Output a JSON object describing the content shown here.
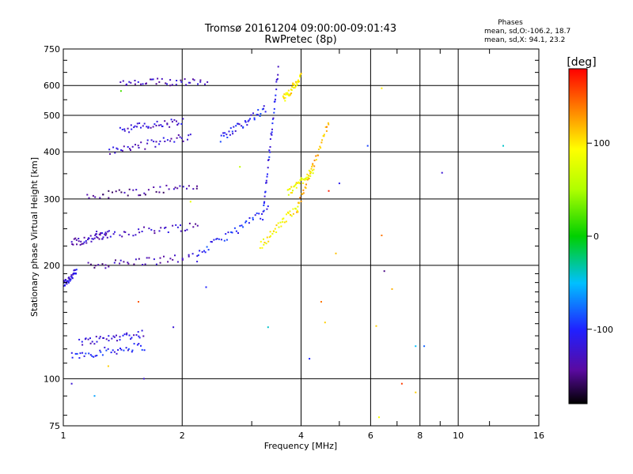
{
  "chart_data": {
    "type": "scatter",
    "title": "Tromsø 20161204 09:00:00-09:01:43",
    "subtitle": "RwPretec (8p)",
    "xlabel": "Frequency [MHz]",
    "ylabel": "Stationary phase Virtual Height [km]",
    "x_scale": "log",
    "y_scale": "log",
    "xlim": [
      1,
      16
    ],
    "ylim": [
      75,
      750
    ],
    "x_ticks": [
      1,
      2,
      4,
      6,
      8,
      10,
      16
    ],
    "x_tick_labels": [
      "1",
      "2",
      "4",
      "6",
      "8",
      "10",
      "16"
    ],
    "x_minor_ticks": [
      3,
      5,
      7,
      9,
      12
    ],
    "y_ticks": [
      75,
      100,
      200,
      300,
      400,
      500,
      600,
      750
    ],
    "y_tick_labels": [
      "75",
      "100",
      "200",
      "300",
      "400",
      "500",
      "600",
      "750"
    ],
    "y_minor_ticks": [
      80,
      90,
      110,
      120,
      130,
      140,
      150,
      160,
      170,
      180,
      190,
      225,
      250,
      275,
      350,
      450,
      550,
      650,
      700
    ],
    "grid": true,
    "stats": {
      "title": "Phases",
      "line1": "mean, sd,O:-106.2, 18.7",
      "line2": "mean, sd,X:  94.1, 23.2"
    },
    "colorbar": {
      "label": "[deg]",
      "range": [
        -180,
        180
      ],
      "ticks": [
        100,
        0,
        -100
      ],
      "tick_labels": [
        "100",
        "0",
        "-100"
      ],
      "colormap": "rainbow"
    },
    "series": [
      {
        "mode": "O",
        "phase_mean": -106.2,
        "phase_sd": 18.7,
        "traces": [
          {
            "x0": 1.0,
            "x1": 1.08,
            "y0": 178,
            "y1": 192,
            "phase": -115
          },
          {
            "x0": 1.05,
            "x1": 1.6,
            "y0": 115,
            "y1": 122,
            "phase": -105
          },
          {
            "x0": 1.1,
            "x1": 1.6,
            "y0": 125,
            "y1": 132,
            "phase": -120
          },
          {
            "x0": 1.05,
            "x1": 1.3,
            "y0": 230,
            "y1": 240,
            "phase": -130
          },
          {
            "x0": 1.15,
            "x1": 2.2,
            "y0": 200,
            "y1": 210,
            "phase": -135
          },
          {
            "x0": 1.2,
            "x1": 2.2,
            "y0": 240,
            "y1": 255,
            "phase": -130
          },
          {
            "x0": 1.15,
            "x1": 2.2,
            "y0": 305,
            "y1": 325,
            "phase": -140
          },
          {
            "x0": 1.3,
            "x1": 2.1,
            "y0": 400,
            "y1": 440,
            "phase": -125
          },
          {
            "x0": 1.4,
            "x1": 2.0,
            "y0": 460,
            "y1": 480,
            "phase": -120
          },
          {
            "x0": 1.4,
            "x1": 2.3,
            "y0": 605,
            "y1": 620,
            "phase": -130
          },
          {
            "x0": 2.5,
            "x1": 3.25,
            "y0": 435,
            "y1": 520,
            "phase": -105
          },
          {
            "x0": 2.2,
            "x1": 3.3,
            "y0": 215,
            "y1": 280,
            "phase": -100
          },
          {
            "x0": 3.2,
            "x1": 3.5,
            "y0": 270,
            "y1": 660,
            "phase": -110
          }
        ]
      },
      {
        "mode": "X",
        "phase_mean": 94.1,
        "phase_sd": 23.2,
        "traces": [
          {
            "x0": 3.15,
            "x1": 3.95,
            "y0": 225,
            "y1": 290,
            "phase": 95
          },
          {
            "x0": 3.6,
            "x1": 4.0,
            "y0": 550,
            "y1": 630,
            "phase": 100
          },
          {
            "x0": 3.9,
            "x1": 4.7,
            "y0": 280,
            "y1": 480,
            "phase": 120
          },
          {
            "x0": 3.7,
            "x1": 4.3,
            "y0": 310,
            "y1": 360,
            "phase": 90
          }
        ]
      }
    ],
    "scattered_points": [
      {
        "x": 5.9,
        "y": 415,
        "phase": -90
      },
      {
        "x": 9.1,
        "y": 352,
        "phase": -120
      },
      {
        "x": 13.0,
        "y": 415,
        "phase": -40
      },
      {
        "x": 5.0,
        "y": 330,
        "phase": -110
      },
      {
        "x": 6.4,
        "y": 590,
        "phase": 100
      },
      {
        "x": 6.5,
        "y": 193,
        "phase": -150
      },
      {
        "x": 6.4,
        "y": 240,
        "phase": 140
      },
      {
        "x": 8.2,
        "y": 122,
        "phase": -80
      },
      {
        "x": 7.8,
        "y": 122,
        "phase": -50
      },
      {
        "x": 7.2,
        "y": 97,
        "phase": 160
      },
      {
        "x": 7.8,
        "y": 92,
        "phase": 110
      },
      {
        "x": 6.8,
        "y": 173,
        "phase": 120
      },
      {
        "x": 6.2,
        "y": 138,
        "phase": 110
      },
      {
        "x": 6.3,
        "y": 79,
        "phase": 90
      },
      {
        "x": 4.9,
        "y": 215,
        "phase": 115
      },
      {
        "x": 4.2,
        "y": 113,
        "phase": -100
      },
      {
        "x": 4.5,
        "y": 160,
        "phase": 140
      },
      {
        "x": 4.6,
        "y": 141,
        "phase": 110
      },
      {
        "x": 3.3,
        "y": 137,
        "phase": -40
      },
      {
        "x": 1.9,
        "y": 137,
        "phase": -120
      },
      {
        "x": 1.3,
        "y": 108,
        "phase": 110
      },
      {
        "x": 1.05,
        "y": 97,
        "phase": -120
      },
      {
        "x": 1.2,
        "y": 90,
        "phase": -60
      },
      {
        "x": 1.6,
        "y": 100,
        "phase": -120
      },
      {
        "x": 1.55,
        "y": 160,
        "phase": 150
      },
      {
        "x": 2.1,
        "y": 295,
        "phase": 80
      },
      {
        "x": 2.8,
        "y": 365,
        "phase": 60
      },
      {
        "x": 4.7,
        "y": 315,
        "phase": 170
      },
      {
        "x": 1.4,
        "y": 580,
        "phase": 20
      },
      {
        "x": 2.3,
        "y": 175,
        "phase": -100
      }
    ]
  }
}
